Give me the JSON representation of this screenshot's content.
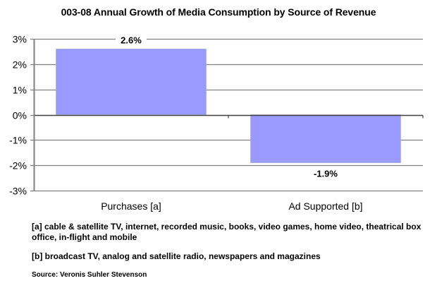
{
  "chart_data": {
    "type": "bar",
    "title": "003-08 Annual Growth of Media Consumption by Source of Revenue",
    "xlabel": "",
    "ylabel": "",
    "categories": [
      "Purchases [a]",
      "Ad Supported [b]"
    ],
    "values": [
      2.6,
      -1.9
    ],
    "data_labels": [
      "2.6%",
      "-1.9%"
    ],
    "ylim": [
      -3,
      3
    ],
    "yticks": [
      3,
      2,
      1,
      0,
      -1,
      -2,
      -3
    ],
    "ytick_labels": [
      "3%",
      "2%",
      "1%",
      "0%",
      "-1%",
      "-2%",
      "-3%"
    ],
    "grid": true,
    "legend": "none",
    "colors": {
      "bar": "#9999ff",
      "gridline": "#808080",
      "zero_axis": "#404040",
      "axis": "#808080"
    }
  },
  "footnotes": {
    "a": "[a] cable & satellite TV, internet, recorded music, books, video games, home video, theatrical box office, in-flight and mobile",
    "b": "[b] broadcast TV, analog and satellite radio, newspapers and magazines"
  },
  "source": "Source: Veronis Suhler Stevenson"
}
